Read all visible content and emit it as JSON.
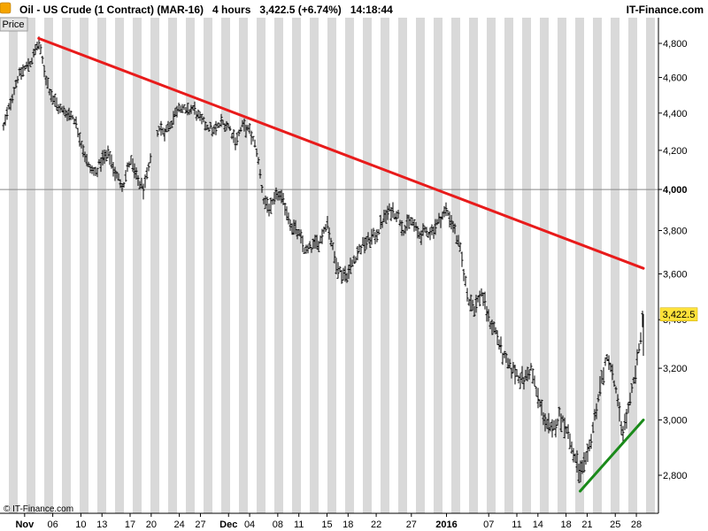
{
  "header": {
    "title": "Oil - US Crude (1 Contract) (MAR-16)",
    "interval": "4 hours",
    "quote": "3,422.5 (+6.74%)",
    "time": "14:18:44",
    "brand": "IT-Finance.com",
    "price_tab": "Price",
    "copyright": "© IT-Finance.com"
  },
  "colors": {
    "resistance": "#e81b1b",
    "support": "#1a8a1a",
    "bars": "#000000",
    "badge": "#ffe23a",
    "band_gray": "#d9d9d9"
  },
  "chart_data": {
    "type": "ohlc",
    "symbol": "Oil - US Crude (1 Contract) (MAR-16)",
    "interval": "4 hours",
    "last_price": 3422.5,
    "last_label": "3,422.5",
    "ylim": [
      2680,
      4900
    ],
    "y_scale": "log",
    "y_ticks": [
      2800,
      3000,
      3200,
      3400,
      3600,
      3800,
      4000,
      4200,
      4400,
      4600,
      4800
    ],
    "y_tick_labels": [
      "2,800",
      "3,000",
      "3,200",
      "3,400",
      "3,600",
      "3,800",
      "4,000",
      "4,200",
      "4,400",
      "4,600",
      "4,800"
    ],
    "reference_line": 4000,
    "x_labels": [
      {
        "date": "2015-11-02",
        "label": "Nov",
        "bold": true
      },
      {
        "date": "2015-11-06",
        "label": "06",
        "bold": false
      },
      {
        "date": "2015-11-10",
        "label": "10",
        "bold": false
      },
      {
        "date": "2015-11-13",
        "label": "13",
        "bold": false
      },
      {
        "date": "2015-11-17",
        "label": "17",
        "bold": false
      },
      {
        "date": "2015-11-20",
        "label": "20",
        "bold": false
      },
      {
        "date": "2015-11-24",
        "label": "24",
        "bold": false
      },
      {
        "date": "2015-11-27",
        "label": "27",
        "bold": false
      },
      {
        "date": "2015-12-01",
        "label": "Dec",
        "bold": true
      },
      {
        "date": "2015-12-04",
        "label": "04",
        "bold": false
      },
      {
        "date": "2015-12-08",
        "label": "08",
        "bold": false
      },
      {
        "date": "2015-12-11",
        "label": "11",
        "bold": false
      },
      {
        "date": "2015-12-15",
        "label": "15",
        "bold": false
      },
      {
        "date": "2015-12-18",
        "label": "18",
        "bold": false
      },
      {
        "date": "2015-12-22",
        "label": "22",
        "bold": false
      },
      {
        "date": "2015-12-27",
        "label": "27",
        "bold": false
      },
      {
        "date": "2016-01-01",
        "label": "2016",
        "bold": true
      },
      {
        "date": "2016-01-07",
        "label": "07",
        "bold": false
      },
      {
        "date": "2016-01-11",
        "label": "11",
        "bold": false
      },
      {
        "date": "2016-01-14",
        "label": "14",
        "bold": false
      },
      {
        "date": "2016-01-18",
        "label": "18",
        "bold": false
      },
      {
        "date": "2016-01-21",
        "label": "21",
        "bold": false
      },
      {
        "date": "2016-01-25",
        "label": "25",
        "bold": false
      },
      {
        "date": "2016-01-28",
        "label": "28",
        "bold": false
      }
    ],
    "price_path": [
      [
        "2015-10-30",
        4320
      ],
      [
        "2015-11-01",
        4600
      ],
      [
        "2015-11-02",
        4650
      ],
      [
        "2015-11-03",
        4700
      ],
      [
        "2015-11-04",
        4810
      ],
      [
        "2015-11-05",
        4600
      ],
      [
        "2015-11-06",
        4480
      ],
      [
        "2015-11-07",
        4420
      ],
      [
        "2015-11-09",
        4380
      ],
      [
        "2015-11-10",
        4250
      ],
      [
        "2015-11-11",
        4120
      ],
      [
        "2015-11-12",
        4080
      ],
      [
        "2015-11-13",
        4150
      ],
      [
        "2015-11-14",
        4180
      ],
      [
        "2015-11-15",
        4070
      ],
      [
        "2015-11-16",
        4020
      ],
      [
        "2015-11-17",
        4150
      ],
      [
        "2015-11-18",
        4050
      ],
      [
        "2015-11-19",
        4000
      ],
      [
        "2015-11-21",
        4320
      ],
      [
        "2015-11-22",
        4300
      ],
      [
        "2015-11-23",
        4360
      ],
      [
        "2015-11-24",
        4450
      ],
      [
        "2015-11-25",
        4400
      ],
      [
        "2015-11-26",
        4430
      ],
      [
        "2015-11-27",
        4360
      ],
      [
        "2015-11-29",
        4300
      ],
      [
        "2015-11-30",
        4350
      ],
      [
        "2015-12-01",
        4330
      ],
      [
        "2015-12-02",
        4250
      ],
      [
        "2015-12-03",
        4330
      ],
      [
        "2015-12-04",
        4300
      ],
      [
        "2015-12-05",
        4200
      ],
      [
        "2015-12-06",
        3950
      ],
      [
        "2015-12-07",
        3900
      ],
      [
        "2015-12-08",
        3980
      ],
      [
        "2015-12-09",
        3920
      ],
      [
        "2015-12-10",
        3820
      ],
      [
        "2015-12-11",
        3780
      ],
      [
        "2015-12-12",
        3700
      ],
      [
        "2015-12-14",
        3750
      ],
      [
        "2015-12-15",
        3850
      ],
      [
        "2015-12-16",
        3680
      ],
      [
        "2015-12-17",
        3600
      ],
      [
        "2015-12-18",
        3600
      ],
      [
        "2015-12-19",
        3680
      ],
      [
        "2015-12-20",
        3730
      ],
      [
        "2015-12-22",
        3780
      ],
      [
        "2015-12-23",
        3850
      ],
      [
        "2015-12-24",
        3900
      ],
      [
        "2015-12-25",
        3880
      ],
      [
        "2015-12-26",
        3800
      ],
      [
        "2015-12-27",
        3850
      ],
      [
        "2015-12-28",
        3780
      ],
      [
        "2015-12-30",
        3800
      ],
      [
        "2016-01-01",
        3900
      ],
      [
        "2016-01-02",
        3820
      ],
      [
        "2016-01-03",
        3700
      ],
      [
        "2016-01-04",
        3500
      ],
      [
        "2016-01-05",
        3450
      ],
      [
        "2016-01-06",
        3520
      ],
      [
        "2016-01-07",
        3400
      ],
      [
        "2016-01-08",
        3350
      ],
      [
        "2016-01-09",
        3250
      ],
      [
        "2016-01-10",
        3200
      ],
      [
        "2016-01-11",
        3180
      ],
      [
        "2016-01-12",
        3150
      ],
      [
        "2016-01-13",
        3200
      ],
      [
        "2016-01-14",
        3080
      ],
      [
        "2016-01-15",
        3000
      ],
      [
        "2016-01-16",
        2950
      ],
      [
        "2016-01-17",
        3020
      ],
      [
        "2016-01-18",
        2980
      ],
      [
        "2016-01-19",
        2880
      ],
      [
        "2016-01-20",
        2800
      ],
      [
        "2016-01-21",
        2850
      ],
      [
        "2016-01-22",
        3000
      ],
      [
        "2016-01-23",
        3150
      ],
      [
        "2016-01-24",
        3250
      ],
      [
        "2016-01-25",
        3120
      ],
      [
        "2016-01-26",
        2950
      ],
      [
        "2016-01-27",
        3050
      ],
      [
        "2016-01-28",
        3200
      ],
      [
        "2016-01-29",
        3422.5
      ]
    ],
    "trendlines": [
      {
        "name": "resistance",
        "color": "#e81b1b",
        "from": [
          "2015-11-04",
          4830
        ],
        "to": [
          "2016-01-29",
          3625
        ]
      },
      {
        "name": "support",
        "color": "#1a8a1a",
        "from": [
          "2016-01-20",
          2745
        ],
        "to": [
          "2016-01-29",
          3000
        ]
      }
    ],
    "grid": {
      "horizontal": false,
      "vertical_bands": true
    },
    "legend": "none"
  }
}
